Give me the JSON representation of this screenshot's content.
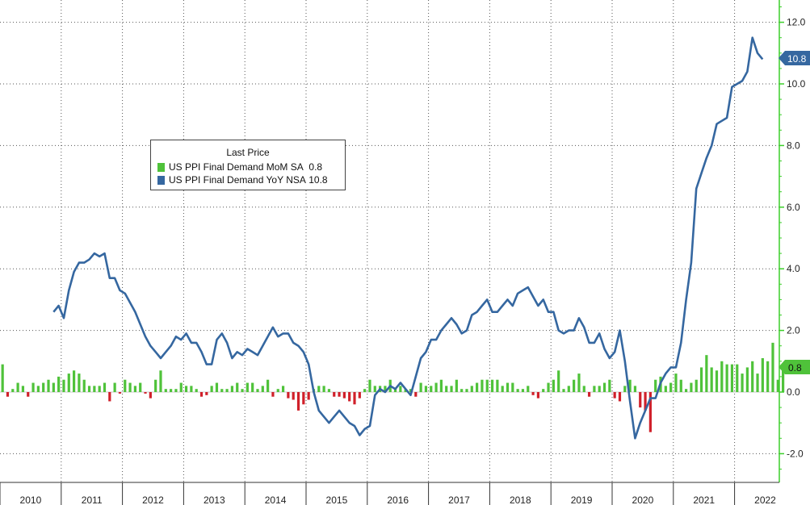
{
  "chart_data": {
    "type": "bar+line",
    "title": "",
    "xlabel": "",
    "ylabel": "",
    "ylim": [
      -2.6,
      12.6
    ],
    "yticks": [
      "-2.0",
      "0.0",
      "2.0",
      "4.0",
      "6.0",
      "8.0",
      "10.0",
      "12.0"
    ],
    "ytick_values": [
      -2,
      0,
      2,
      4,
      6,
      8,
      10,
      12
    ],
    "xticks": [
      "2010",
      "2011",
      "2012",
      "2013",
      "2014",
      "2015",
      "2016",
      "2017",
      "2018",
      "2019",
      "2020",
      "2021",
      "2022"
    ],
    "grid": true,
    "legend": {
      "title": "Last Price",
      "placement": "top-left",
      "items": [
        {
          "label": "US PPI Final Demand MoM SA",
          "value": "0.8",
          "color": "#4fc23a"
        },
        {
          "label": "US PPI Final Demand YoY NSA",
          "value": "10.8",
          "color": "#3567a0"
        }
      ]
    },
    "last_value_labels": {
      "yoy": "10.8",
      "mom": "0.8"
    },
    "x_start": "2010-01",
    "series": [
      {
        "name": "US PPI Final Demand MoM SA",
        "kind": "bar",
        "color_positive": "#4fc23a",
        "color_negative": "#d0202a",
        "values": [
          0.9,
          -0.15,
          0.1,
          0.3,
          0.2,
          -0.15,
          0.3,
          0.2,
          0.3,
          0.4,
          0.3,
          0.5,
          0.4,
          0.6,
          0.7,
          0.6,
          0.4,
          0.2,
          0.2,
          0.2,
          0.3,
          -0.3,
          0.3,
          -0.05,
          0.4,
          0.3,
          0.2,
          0.3,
          -0.05,
          -0.2,
          0.4,
          0.7,
          0.1,
          0.1,
          0.1,
          0.3,
          0.2,
          0.2,
          0.1,
          -0.15,
          -0.1,
          0.2,
          0.3,
          0.1,
          0.1,
          0.2,
          0.3,
          0.1,
          0.3,
          0.3,
          0.1,
          0.2,
          0.4,
          -0.15,
          0.1,
          0.2,
          -0.2,
          -0.25,
          -0.6,
          -0.4,
          -0.25,
          0.1,
          0.2,
          0.2,
          0.1,
          -0.15,
          -0.15,
          -0.2,
          -0.3,
          -0.4,
          -0.2,
          0.1,
          0.4,
          0.2,
          0.2,
          0.2,
          0.4,
          0.1,
          0.2,
          0.1,
          0.1,
          -0.15,
          0.3,
          0.2,
          0.2,
          0.3,
          0.4,
          0.2,
          0.2,
          0.4,
          0.1,
          0.1,
          0.2,
          0.3,
          0.4,
          0.4,
          0.4,
          0.4,
          0.2,
          0.3,
          0.3,
          0.1,
          0.1,
          0.2,
          -0.1,
          -0.2,
          0.1,
          0.3,
          0.4,
          0.7,
          0.1,
          0.2,
          0.4,
          0.6,
          0.2,
          -0.15,
          0.2,
          0.2,
          0.3,
          0.4,
          -0.2,
          -0.3,
          0.2,
          0.4,
          0.2,
          -0.5,
          -0.6,
          -1.3,
          0.4,
          0.5,
          0.2,
          0.3,
          0.6,
          0.4,
          0.1,
          0.3,
          0.4,
          0.8,
          1.2,
          0.8,
          0.7,
          1.0,
          0.9,
          0.9,
          0.9,
          0.6,
          0.8,
          1.0,
          0.6,
          1.1,
          1.0,
          1.6,
          0.4,
          0.8
        ]
      },
      {
        "name": "US PPI Final Demand YoY NSA",
        "kind": "line",
        "color": "#3567a0",
        "values": [
          null,
          null,
          null,
          null,
          null,
          null,
          null,
          null,
          null,
          null,
          2.6,
          2.8,
          2.4,
          3.3,
          3.9,
          4.2,
          4.2,
          4.3,
          4.5,
          4.4,
          4.5,
          3.7,
          3.7,
          3.3,
          3.2,
          2.9,
          2.6,
          2.2,
          1.8,
          1.5,
          1.3,
          1.1,
          1.3,
          1.5,
          1.8,
          1.7,
          1.9,
          1.6,
          1.6,
          1.3,
          0.9,
          0.9,
          1.7,
          1.9,
          1.6,
          1.1,
          1.3,
          1.2,
          1.4,
          1.3,
          1.2,
          1.5,
          1.8,
          2.1,
          1.8,
          1.9,
          1.9,
          1.6,
          1.5,
          1.3,
          0.9,
          0.0,
          -0.6,
          -0.8,
          -1.0,
          -0.8,
          -0.6,
          -0.8,
          -1.0,
          -1.1,
          -1.4,
          -1.2,
          -1.1,
          -0.1,
          0.1,
          0.0,
          0.2,
          0.1,
          0.3,
          0.1,
          -0.1,
          0.5,
          1.1,
          1.3,
          1.7,
          1.7,
          2.0,
          2.2,
          2.4,
          2.2,
          1.9,
          2.0,
          2.5,
          2.6,
          2.8,
          3.0,
          2.6,
          2.6,
          2.8,
          3.0,
          2.8,
          3.2,
          3.3,
          3.4,
          3.1,
          2.8,
          3.0,
          2.6,
          2.6,
          2.0,
          1.9,
          2.0,
          2.0,
          2.4,
          2.1,
          1.6,
          1.6,
          1.9,
          1.4,
          1.1,
          1.3,
          2.0,
          1.0,
          -0.3,
          -1.5,
          -1.0,
          -0.6,
          -0.2,
          -0.2,
          0.3,
          0.6,
          0.8,
          0.8,
          1.6,
          3.0,
          4.2,
          6.6,
          7.1,
          7.6,
          8.0,
          8.7,
          8.8,
          8.9,
          9.9,
          10.0,
          10.1,
          10.4,
          11.5,
          11.0,
          10.8
        ]
      }
    ]
  }
}
